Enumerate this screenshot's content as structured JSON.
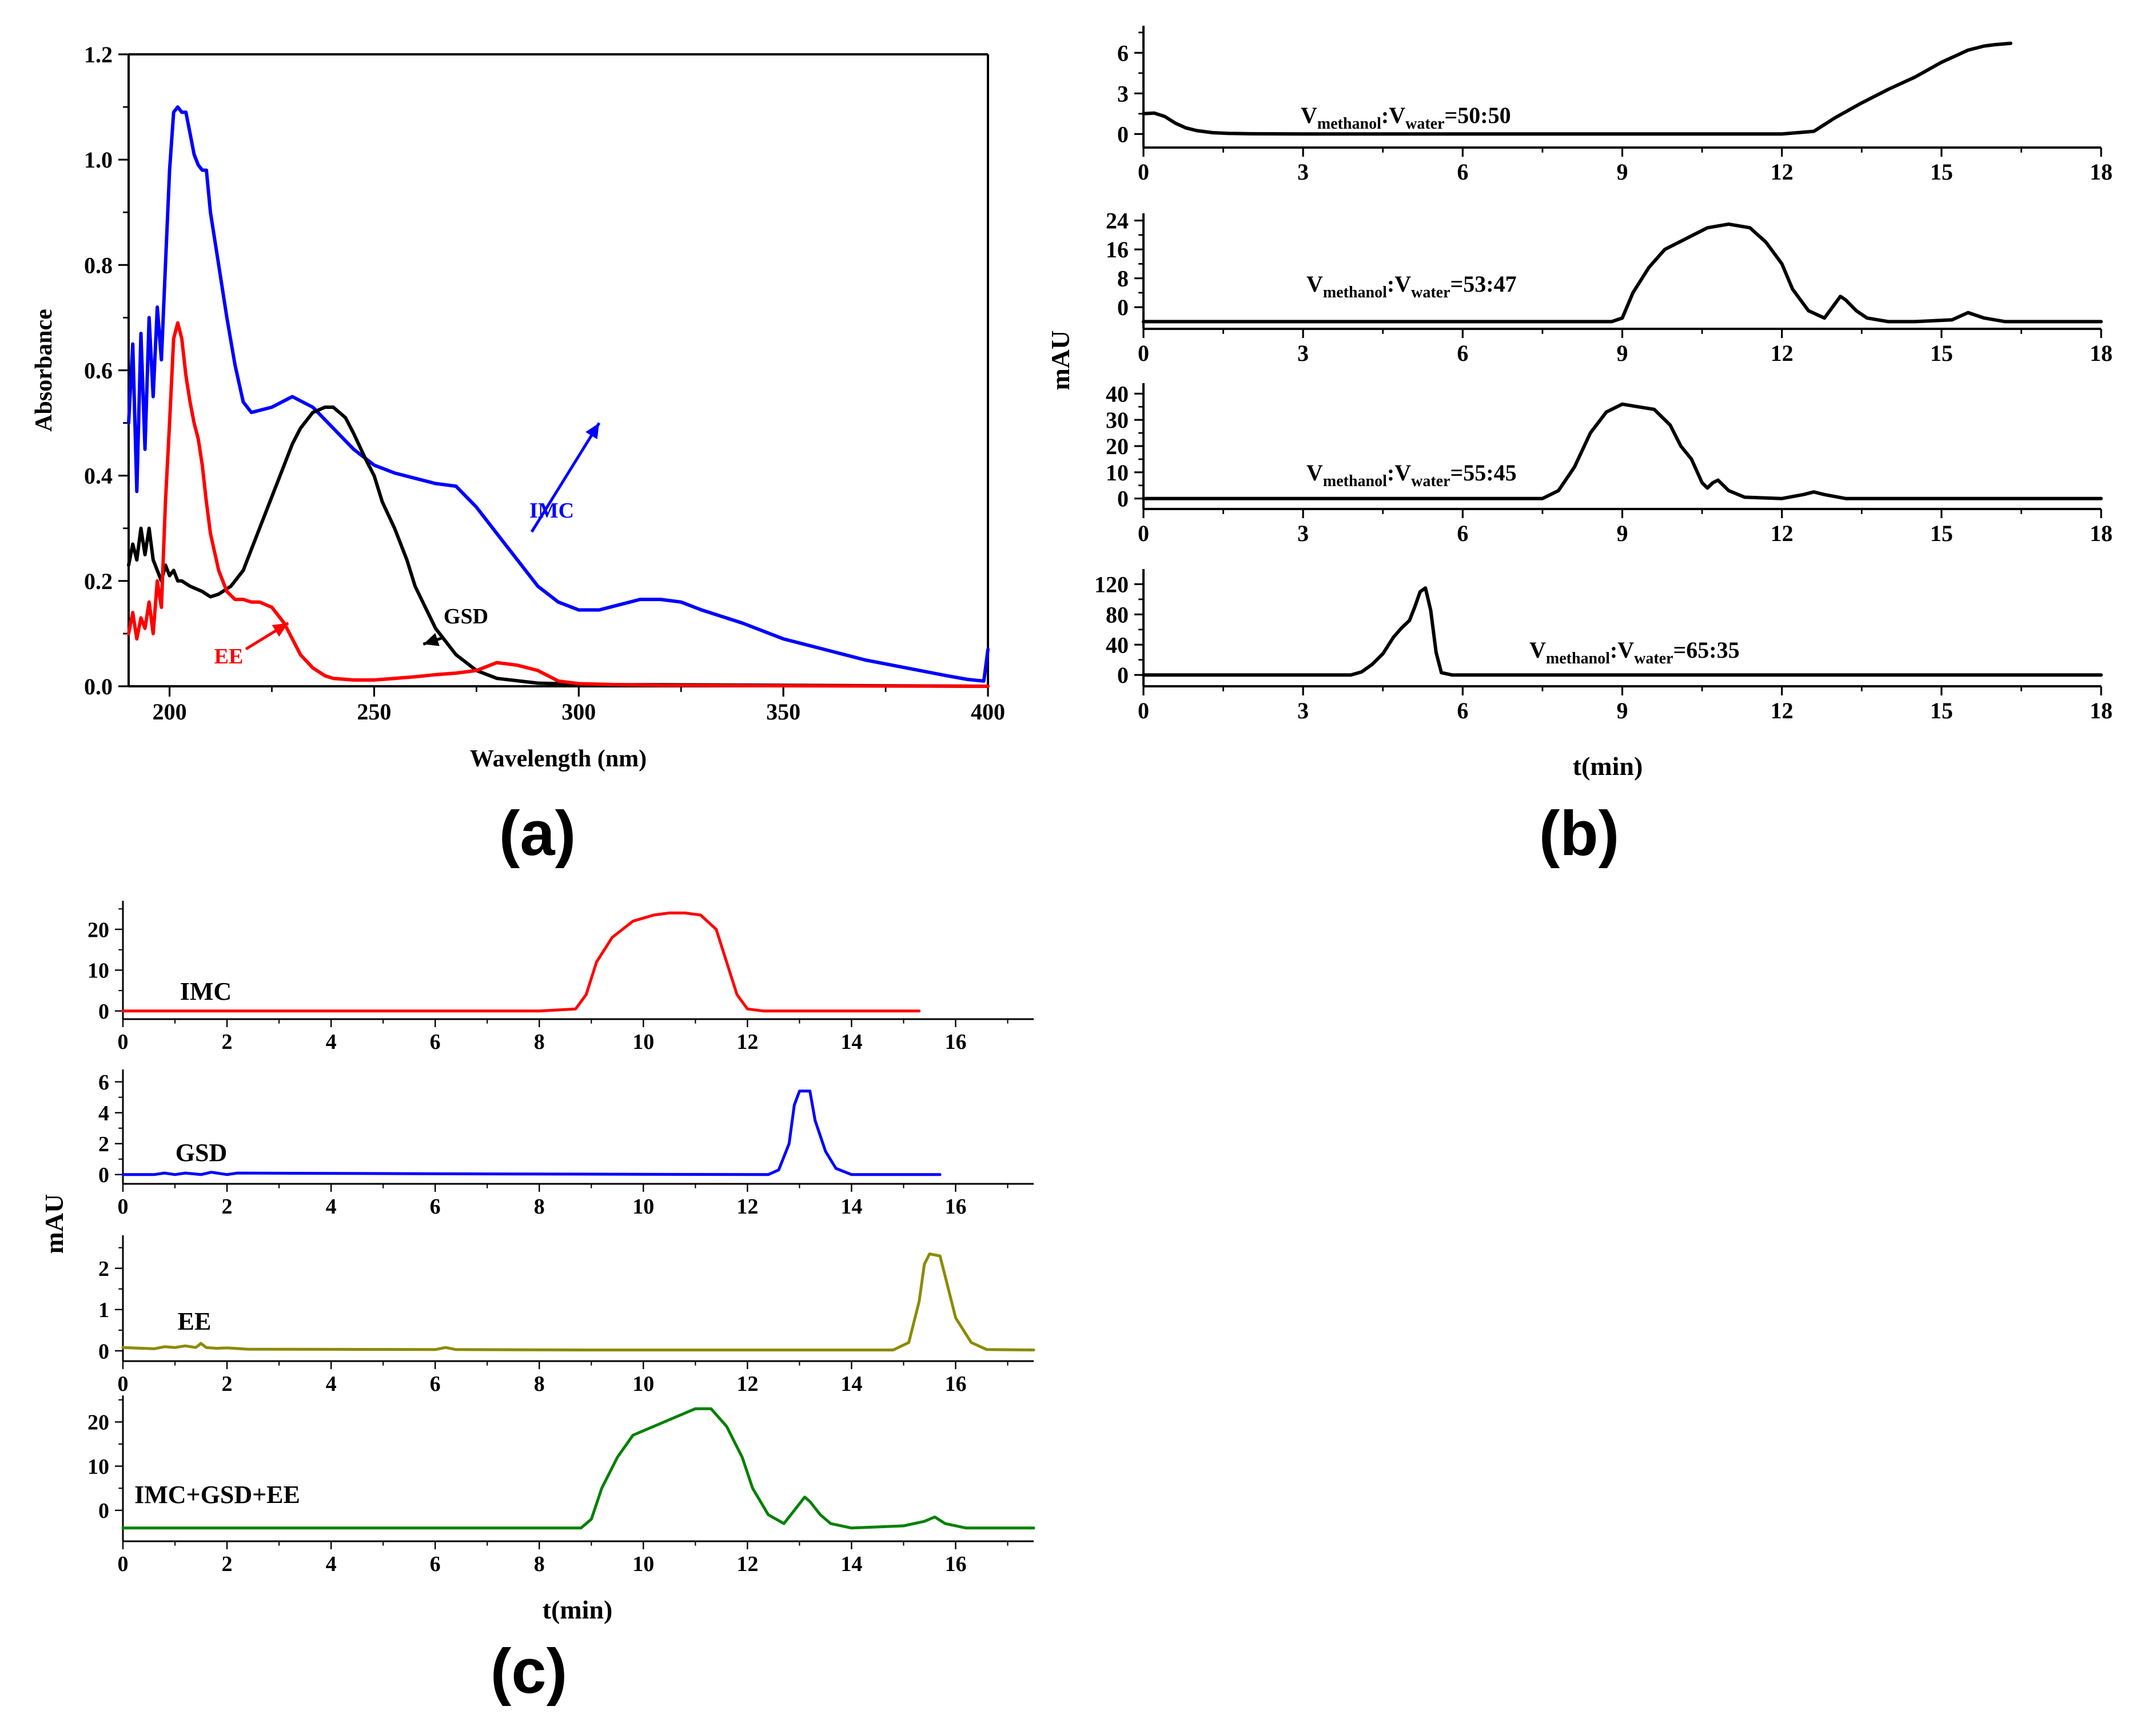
{
  "panels": {
    "a": "(a)",
    "b": "(b)",
    "c": "(c)"
  },
  "chart_data": [
    {
      "id": "a",
      "type": "line",
      "title": "",
      "xlabel": "Wavelength (nm)",
      "ylabel": "Absorbance",
      "xlim": [
        190,
        400
      ],
      "ylim": [
        0,
        1.2
      ],
      "xticks": [
        200,
        250,
        300,
        350,
        400
      ],
      "yticks": [
        0.0,
        0.2,
        0.4,
        0.6,
        0.8,
        1.0,
        1.2
      ],
      "ytick_labels": [
        "0.0",
        "0.2",
        "0.4",
        "0.6",
        "0.8",
        "1.0",
        "1.2"
      ],
      "grid": false,
      "series": [
        {
          "name": "IMC",
          "color": "#0000ff",
          "x": [
            190,
            191,
            192,
            193,
            194,
            195,
            196,
            197,
            198,
            199,
            200,
            201,
            202,
            203,
            204,
            205,
            206,
            207,
            208,
            209,
            210,
            212,
            214,
            216,
            218,
            220,
            225,
            230,
            235,
            240,
            245,
            250,
            255,
            260,
            265,
            270,
            275,
            280,
            285,
            290,
            295,
            300,
            305,
            310,
            315,
            320,
            325,
            330,
            340,
            350,
            360,
            370,
            380,
            390,
            395,
            399,
            400
          ],
          "y": [
            0.5,
            0.65,
            0.37,
            0.67,
            0.45,
            0.7,
            0.55,
            0.72,
            0.62,
            0.8,
            0.98,
            1.09,
            1.1,
            1.09,
            1.09,
            1.05,
            1.01,
            0.99,
            0.98,
            0.98,
            0.9,
            0.8,
            0.7,
            0.61,
            0.54,
            0.52,
            0.53,
            0.55,
            0.53,
            0.49,
            0.45,
            0.42,
            0.405,
            0.395,
            0.385,
            0.38,
            0.34,
            0.29,
            0.24,
            0.19,
            0.16,
            0.145,
            0.145,
            0.155,
            0.165,
            0.165,
            0.16,
            0.145,
            0.12,
            0.09,
            0.07,
            0.05,
            0.035,
            0.02,
            0.013,
            0.01,
            0.07
          ]
        },
        {
          "name": "GSD",
          "color": "#000000",
          "x": [
            190,
            191,
            192,
            193,
            194,
            195,
            196,
            197,
            198,
            199,
            200,
            201,
            202,
            203,
            205,
            208,
            210,
            212,
            215,
            218,
            220,
            222,
            225,
            228,
            230,
            232,
            235,
            238,
            240,
            243,
            245,
            248,
            250,
            252,
            255,
            258,
            260,
            265,
            270,
            275,
            280,
            290,
            300,
            310,
            320,
            350,
            400
          ],
          "y": [
            0.23,
            0.27,
            0.24,
            0.3,
            0.25,
            0.3,
            0.24,
            0.22,
            0.2,
            0.23,
            0.21,
            0.22,
            0.2,
            0.2,
            0.19,
            0.18,
            0.17,
            0.175,
            0.19,
            0.22,
            0.26,
            0.3,
            0.36,
            0.42,
            0.46,
            0.49,
            0.52,
            0.53,
            0.53,
            0.51,
            0.48,
            0.43,
            0.4,
            0.35,
            0.3,
            0.24,
            0.19,
            0.11,
            0.06,
            0.03,
            0.015,
            0.006,
            0.004,
            0.003,
            0.003,
            0.002,
            0.0
          ]
        },
        {
          "name": "EE",
          "color": "#ff0000",
          "x": [
            190,
            191,
            192,
            193,
            194,
            195,
            196,
            197,
            198,
            199,
            200,
            201,
            202,
            203,
            204,
            205,
            206,
            207,
            208,
            209,
            210,
            212,
            214,
            216,
            218,
            220,
            222,
            225,
            228,
            230,
            232,
            235,
            238,
            240,
            245,
            250,
            255,
            260,
            265,
            270,
            275,
            280,
            285,
            290,
            295,
            300,
            310,
            320,
            350,
            400
          ],
          "y": [
            0.1,
            0.14,
            0.09,
            0.13,
            0.11,
            0.16,
            0.1,
            0.2,
            0.15,
            0.35,
            0.5,
            0.66,
            0.69,
            0.66,
            0.59,
            0.54,
            0.5,
            0.47,
            0.42,
            0.35,
            0.29,
            0.22,
            0.18,
            0.165,
            0.165,
            0.16,
            0.16,
            0.15,
            0.12,
            0.09,
            0.06,
            0.035,
            0.02,
            0.015,
            0.012,
            0.012,
            0.015,
            0.018,
            0.022,
            0.025,
            0.03,
            0.045,
            0.04,
            0.03,
            0.01,
            0.005,
            0.003,
            0.002,
            0.001,
            0.0
          ]
        }
      ],
      "annotations": [
        {
          "text": "IMC",
          "color": "#0000ff"
        },
        {
          "text": "GSD",
          "color": "#000000"
        },
        {
          "text": "EE",
          "color": "#ff0000"
        }
      ]
    },
    {
      "id": "b",
      "type": "line",
      "xlabel": "t(min)",
      "ylabel": "mAU",
      "grid": false,
      "subplots": [
        {
          "label_main1": "V",
          "label_sub1": "methanol",
          "label_sep": ":",
          "label_main2": "V",
          "label_sub2": "water",
          "label_ratio": "=50:50",
          "xlim": [
            0,
            18
          ],
          "ylim": [
            -1,
            8
          ],
          "xticks": [
            0,
            3,
            6,
            9,
            12,
            15,
            18
          ],
          "yticks": [
            0,
            3,
            6
          ],
          "color": "#000000",
          "x": [
            0,
            0.2,
            0.4,
            0.6,
            0.8,
            1.0,
            1.3,
            1.6,
            2,
            3,
            6,
            9,
            12,
            12.6,
            12.8,
            13.0,
            13.5,
            14.0,
            14.5,
            15.0,
            15.5,
            15.8,
            16.0,
            16.3
          ],
          "y": [
            1.5,
            1.55,
            1.3,
            0.8,
            0.45,
            0.25,
            0.1,
            0.05,
            0.02,
            0.0,
            0.0,
            0.0,
            0.0,
            0.2,
            0.7,
            1.2,
            2.3,
            3.3,
            4.2,
            5.3,
            6.2,
            6.5,
            6.6,
            6.7
          ]
        },
        {
          "label_main1": "V",
          "label_sub1": "methanol",
          "label_sep": ":",
          "label_main2": "V",
          "label_sub2": "water",
          "label_ratio": "=53:47",
          "xlim": [
            0,
            18
          ],
          "ylim": [
            -6,
            26
          ],
          "xticks": [
            0,
            3,
            6,
            9,
            12,
            15,
            18
          ],
          "yticks": [
            0,
            8,
            16,
            24
          ],
          "color": "#000000",
          "x": [
            0,
            3,
            6,
            8.8,
            9.0,
            9.2,
            9.5,
            9.8,
            10.2,
            10.6,
            11.0,
            11.4,
            11.7,
            12.0,
            12.2,
            12.5,
            12.8,
            13.0,
            13.1,
            13.2,
            13.4,
            13.6,
            14,
            14.5,
            15.2,
            15.5,
            15.8,
            16.2,
            17,
            18
          ],
          "y": [
            -4,
            -4,
            -4,
            -4,
            -3,
            4,
            11,
            16,
            19,
            22,
            23,
            22,
            18,
            12,
            5,
            -1,
            -3,
            1,
            3,
            2,
            -1,
            -3,
            -4,
            -4,
            -3.5,
            -1.5,
            -3,
            -4,
            -4,
            -4
          ]
        },
        {
          "label_main1": "V",
          "label_sub1": "methanol",
          "label_sep": ":",
          "label_main2": "V",
          "label_sub2": "water",
          "label_ratio": "=55:45",
          "xlim": [
            0,
            18
          ],
          "ylim": [
            -4,
            44
          ],
          "xticks": [
            0,
            3,
            6,
            9,
            12,
            15,
            18
          ],
          "yticks": [
            0,
            10,
            20,
            30,
            40
          ],
          "color": "#000000",
          "x": [
            0,
            3,
            6,
            7.5,
            7.8,
            8.1,
            8.4,
            8.7,
            9.0,
            9.3,
            9.6,
            9.9,
            10.1,
            10.3,
            10.5,
            10.6,
            10.7,
            10.8,
            11.0,
            11.3,
            12,
            12.4,
            12.6,
            12.8,
            13.2,
            15,
            18
          ],
          "y": [
            0,
            0,
            0,
            0,
            3,
            12,
            25,
            33,
            36,
            35,
            34,
            28,
            20,
            15,
            6,
            4,
            6,
            7,
            3,
            0.5,
            0,
            1.5,
            2.5,
            1.5,
            0,
            0,
            0
          ]
        },
        {
          "label_main1": "V",
          "label_sub1": "methanol",
          "label_sep": ":",
          "label_main2": "V",
          "label_sub2": "water",
          "label_ratio": "=65:35",
          "xlim": [
            0,
            18
          ],
          "ylim": [
            -15,
            140
          ],
          "xticks": [
            0,
            3,
            6,
            9,
            12,
            15,
            18
          ],
          "yticks": [
            0,
            40,
            80,
            120
          ],
          "color": "#000000",
          "x": [
            0,
            2,
            3.9,
            4.1,
            4.3,
            4.5,
            4.7,
            4.85,
            5.0,
            5.1,
            5.2,
            5.3,
            5.4,
            5.5,
            5.6,
            5.8,
            6,
            9,
            18
          ],
          "y": [
            0,
            0,
            0,
            4,
            14,
            28,
            50,
            62,
            72,
            90,
            110,
            115,
            85,
            30,
            3,
            0,
            0,
            0,
            0
          ]
        }
      ]
    },
    {
      "id": "c",
      "type": "line",
      "xlabel": "t(min)",
      "ylabel": "mAU",
      "grid": false,
      "subplots": [
        {
          "label": "IMC",
          "color": "#ff0000",
          "xlim": [
            0,
            17.5
          ],
          "ylim": [
            -2,
            27
          ],
          "xticks": [
            0,
            2,
            4,
            6,
            8,
            10,
            12,
            14,
            16
          ],
          "yticks": [
            0,
            10,
            20
          ],
          "x": [
            0,
            4,
            8,
            8.7,
            8.9,
            9.1,
            9.4,
            9.8,
            10.2,
            10.5,
            10.8,
            11.1,
            11.4,
            11.6,
            11.8,
            12.0,
            12.3,
            13,
            14,
            15.3
          ],
          "y": [
            0,
            0,
            0,
            0.5,
            4,
            12,
            18,
            22,
            23.5,
            24,
            24,
            23.5,
            20,
            12,
            4,
            0.5,
            0,
            0,
            0,
            0
          ]
        },
        {
          "label": "GSD",
          "color": "#0000ff",
          "xlim": [
            0,
            17.5
          ],
          "ylim": [
            -0.6,
            6.8
          ],
          "xticks": [
            0,
            2,
            4,
            6,
            8,
            10,
            12,
            14,
            16
          ],
          "yticks": [
            0,
            2,
            4,
            6
          ],
          "x": [
            0,
            0.6,
            0.8,
            1.0,
            1.2,
            1.5,
            1.7,
            2.0,
            2.2,
            6,
            12.4,
            12.6,
            12.8,
            12.9,
            13.0,
            13.2,
            13.3,
            13.5,
            13.7,
            14.0,
            15.7
          ],
          "y": [
            0,
            0,
            0.1,
            0,
            0.1,
            0,
            0.15,
            0,
            0.1,
            0.05,
            0,
            0.3,
            2.0,
            4.5,
            5.4,
            5.4,
            3.5,
            1.5,
            0.4,
            0,
            0
          ]
        },
        {
          "label": "EE",
          "color": "#8b8b00",
          "xlim": [
            0,
            17.5
          ],
          "ylim": [
            -0.25,
            2.8
          ],
          "xticks": [
            0,
            2,
            4,
            6,
            8,
            10,
            12,
            14,
            16
          ],
          "yticks": [
            0,
            1,
            2
          ],
          "x": [
            0,
            0.6,
            0.8,
            1.0,
            1.2,
            1.4,
            1.5,
            1.6,
            1.8,
            2.0,
            2.4,
            6,
            6.2,
            6.4,
            9,
            14.8,
            15.1,
            15.3,
            15.4,
            15.5,
            15.7,
            15.8,
            16.0,
            16.3,
            16.6,
            17.5
          ],
          "y": [
            0.08,
            0.05,
            0.1,
            0.08,
            0.12,
            0.08,
            0.18,
            0.08,
            0.06,
            0.07,
            0.04,
            0.03,
            0.08,
            0.03,
            0.02,
            0.02,
            0.2,
            1.2,
            2.1,
            2.35,
            2.3,
            1.8,
            0.8,
            0.2,
            0.03,
            0.02
          ]
        },
        {
          "label": "IMC+GSD+EE",
          "color": "#008000",
          "xlim": [
            0,
            17.5
          ],
          "ylim": [
            -7,
            26
          ],
          "xticks": [
            0,
            2,
            4,
            6,
            8,
            10,
            12,
            14,
            16
          ],
          "yticks": [
            0,
            10,
            20
          ],
          "x": [
            0,
            4,
            8.8,
            9.0,
            9.2,
            9.5,
            9.8,
            10.2,
            10.6,
            11.0,
            11.3,
            11.6,
            11.9,
            12.1,
            12.4,
            12.7,
            12.9,
            13.1,
            13.2,
            13.4,
            13.6,
            14.0,
            15.0,
            15.4,
            15.6,
            15.8,
            16.2,
            17.5
          ],
          "y": [
            -4,
            -4,
            -4,
            -2,
            5,
            12,
            17,
            19,
            21,
            23,
            23,
            19,
            12,
            5,
            -1,
            -3,
            0,
            3,
            2,
            -1,
            -3,
            -4,
            -3.5,
            -2.5,
            -1.5,
            -3,
            -4,
            -4
          ]
        }
      ]
    }
  ]
}
